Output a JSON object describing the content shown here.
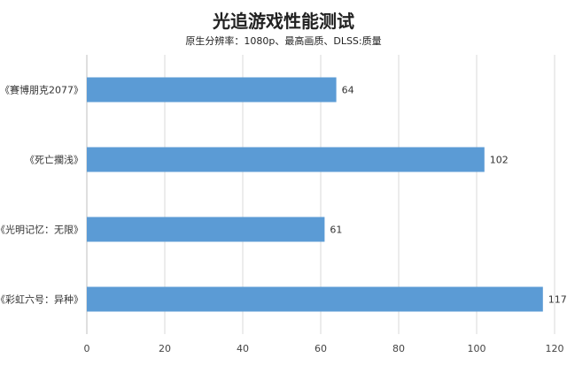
{
  "chart_data": {
    "type": "bar",
    "orientation": "horizontal",
    "title": "光追游戏性能测试",
    "subtitle": "原生分辨率：1080p、最高画质、DLSS:质量",
    "categories": [
      "《賽博朋克2077》",
      "《死亡擱浅》",
      "《光明记忆：无限》",
      "《彩虹六号：异种》"
    ],
    "values": [
      64,
      102,
      61,
      117
    ],
    "xlim": [
      0,
      120
    ],
    "xticks": [
      0,
      20,
      40,
      60,
      80,
      100,
      120
    ],
    "grid": true,
    "bar_color": "#5b9bd5"
  }
}
